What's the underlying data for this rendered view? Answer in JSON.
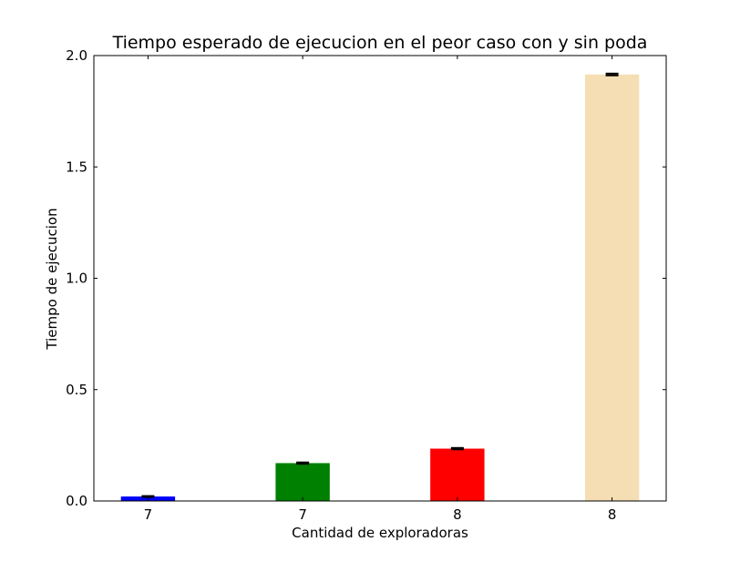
{
  "chart_data": {
    "type": "bar",
    "title": "Tiempo esperado de ejecucion en el peor caso con y sin poda",
    "xlabel": "Cantidad de exploradoras",
    "ylabel": "Tiempo de ejecucion",
    "categories": [
      "7",
      "7",
      "8",
      "8"
    ],
    "values": [
      0.02,
      0.17,
      0.235,
      1.915
    ],
    "errors": [
      0.002,
      0.003,
      0.003,
      0.004
    ],
    "colors": [
      "#0000ff",
      "#008000",
      "#ff0000",
      "#f5deb3"
    ],
    "ylim": [
      0,
      2.0
    ],
    "yticks": [
      "0.0",
      "0.5",
      "1.0",
      "1.5",
      "2.0"
    ],
    "grid": false,
    "legend": "none"
  }
}
